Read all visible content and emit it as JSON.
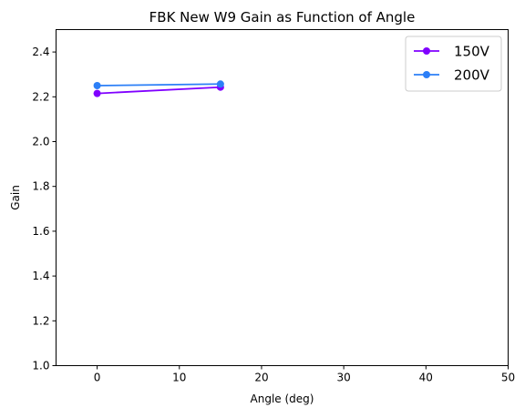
{
  "chart_data": {
    "type": "line",
    "title": "FBK New W9 Gain as Function of Angle",
    "xlabel": "Angle (deg)",
    "ylabel": "Gain",
    "xlim": [
      -5,
      50
    ],
    "ylim": [
      1.0,
      2.5
    ],
    "xticks": [
      0,
      10,
      20,
      30,
      40,
      50
    ],
    "yticks": [
      1.0,
      1.2,
      1.4,
      1.6,
      1.8,
      2.0,
      2.2,
      2.4
    ],
    "xtick_labels": [
      "0",
      "10",
      "20",
      "30",
      "40",
      "50"
    ],
    "ytick_labels": [
      "1.0",
      "1.2",
      "1.4",
      "1.6",
      "1.8",
      "2.0",
      "2.2",
      "2.4"
    ],
    "grid": false,
    "legend_position": "top-right",
    "series": [
      {
        "name": "150V",
        "color": "#8000ff",
        "x": [
          0,
          15
        ],
        "y": [
          2.215,
          2.243
        ]
      },
      {
        "name": "200V",
        "color": "#2c7ff7",
        "x": [
          0,
          15
        ],
        "y": [
          2.25,
          2.257
        ]
      }
    ]
  }
}
